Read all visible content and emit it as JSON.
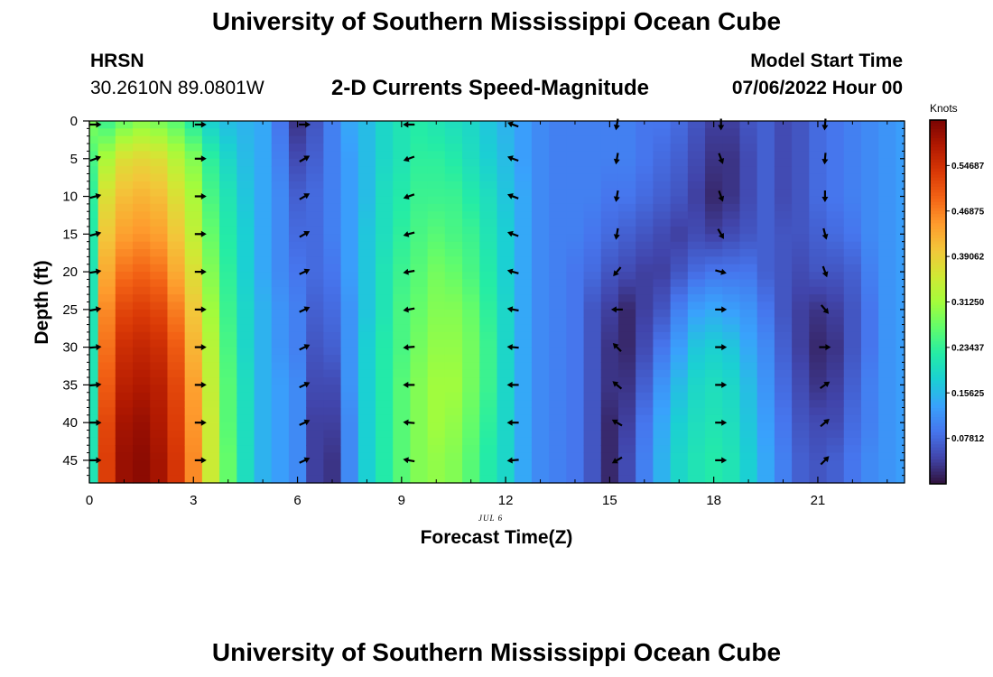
{
  "header": {
    "title": "University of Southern Mississippi Ocean Cube",
    "station": "HRSN",
    "coordinates": "30.2610N  89.0801W",
    "subtitle": "2-D Currents Speed-Magnitude",
    "model_start_label": "Model Start Time",
    "model_start_value": "07/06/2022 Hour 00"
  },
  "footer": {
    "title": "University of Southern Mississippi Ocean Cube"
  },
  "colors": {
    "colormap": [
      "#30123b",
      "#4145ab",
      "#4675ed",
      "#39a2fc",
      "#1bcfd4",
      "#24eca6",
      "#61fc6c",
      "#a4fc3b",
      "#d1e834",
      "#f3c63a",
      "#fe9b2d",
      "#f36315",
      "#d93806",
      "#b11901",
      "#7a0403"
    ],
    "arrow": "#000000",
    "frame": "#000000"
  },
  "chart_data": {
    "type": "heatmap",
    "title": "2-D Currents Speed-Magnitude",
    "xlabel": "Forecast Time(Z)",
    "ylabel": "Depth (ft)",
    "x_sublabel": "JUL 6",
    "xlim": [
      0,
      23.5
    ],
    "ylim": [
      48,
      0
    ],
    "x_ticks": [
      0,
      3,
      6,
      9,
      12,
      15,
      18,
      21
    ],
    "y_ticks": [
      0,
      5,
      10,
      15,
      20,
      25,
      30,
      35,
      40,
      45
    ],
    "colorbar": {
      "label": "Knots",
      "min": 0,
      "max": 0.625,
      "ticks": [
        0.54687,
        0.46875,
        0.39062,
        0.3125,
        0.23437,
        0.15625,
        0.07812
      ],
      "tick_labels": [
        "0.54687",
        "0.46875",
        "0.39062",
        "0.31250",
        "0.23437",
        "0.15625",
        "0.07812"
      ]
    },
    "hours": [
      0,
      0.5,
      1,
      1.5,
      2,
      2.5,
      3,
      3.5,
      4,
      4.5,
      5,
      5.5,
      6,
      6.5,
      7,
      7.5,
      8,
      8.5,
      9,
      9.5,
      10,
      10.5,
      11,
      11.5,
      12,
      12.5,
      13,
      13.5,
      14,
      14.5,
      15,
      15.5,
      16,
      16.5,
      17,
      17.5,
      18,
      18.5,
      19,
      19.5,
      20,
      20.5,
      21,
      21.5,
      22,
      22.5,
      23,
      23.5
    ],
    "depths": [
      0,
      5,
      10,
      15,
      20,
      25,
      30,
      35,
      40,
      45,
      48
    ],
    "speed_knots": [
      [
        0.29,
        0.25,
        0.23,
        0.22,
        0.21,
        0.21,
        0.21,
        0.21,
        0.21,
        0.21,
        0.21
      ],
      [
        0.24,
        0.32,
        0.37,
        0.4,
        0.43,
        0.46,
        0.48,
        0.5,
        0.52,
        0.53,
        0.53
      ],
      [
        0.27,
        0.37,
        0.41,
        0.44,
        0.48,
        0.52,
        0.55,
        0.57,
        0.59,
        0.6,
        0.6
      ],
      [
        0.29,
        0.38,
        0.42,
        0.45,
        0.49,
        0.53,
        0.56,
        0.58,
        0.6,
        0.61,
        0.61
      ],
      [
        0.28,
        0.37,
        0.41,
        0.44,
        0.48,
        0.52,
        0.55,
        0.57,
        0.58,
        0.59,
        0.59
      ],
      [
        0.26,
        0.33,
        0.37,
        0.4,
        0.43,
        0.47,
        0.5,
        0.52,
        0.53,
        0.54,
        0.54
      ],
      [
        0.22,
        0.29,
        0.32,
        0.34,
        0.37,
        0.4,
        0.42,
        0.44,
        0.45,
        0.46,
        0.46
      ],
      [
        0.18,
        0.23,
        0.25,
        0.27,
        0.29,
        0.31,
        0.33,
        0.34,
        0.35,
        0.35,
        0.35
      ],
      [
        0.16,
        0.19,
        0.21,
        0.22,
        0.23,
        0.24,
        0.25,
        0.26,
        0.26,
        0.27,
        0.27
      ],
      [
        0.15,
        0.16,
        0.17,
        0.18,
        0.18,
        0.19,
        0.19,
        0.2,
        0.2,
        0.2,
        0.2
      ],
      [
        0.14,
        0.14,
        0.14,
        0.14,
        0.14,
        0.15,
        0.15,
        0.15,
        0.15,
        0.15,
        0.15
      ],
      [
        0.09,
        0.1,
        0.11,
        0.11,
        0.11,
        0.12,
        0.12,
        0.13,
        0.13,
        0.13,
        0.13
      ],
      [
        0.03,
        0.05,
        0.07,
        0.08,
        0.09,
        0.1,
        0.1,
        0.11,
        0.11,
        0.11,
        0.11
      ],
      [
        0.06,
        0.07,
        0.08,
        0.08,
        0.08,
        0.07,
        0.06,
        0.05,
        0.04,
        0.04,
        0.04
      ],
      [
        0.1,
        0.1,
        0.1,
        0.1,
        0.09,
        0.08,
        0.07,
        0.05,
        0.04,
        0.03,
        0.03
      ],
      [
        0.14,
        0.13,
        0.13,
        0.13,
        0.13,
        0.12,
        0.12,
        0.12,
        0.11,
        0.11,
        0.11
      ],
      [
        0.16,
        0.16,
        0.16,
        0.17,
        0.17,
        0.17,
        0.18,
        0.18,
        0.18,
        0.18,
        0.18
      ],
      [
        0.19,
        0.19,
        0.2,
        0.2,
        0.21,
        0.21,
        0.22,
        0.22,
        0.22,
        0.22,
        0.22
      ],
      [
        0.21,
        0.21,
        0.22,
        0.23,
        0.24,
        0.25,
        0.25,
        0.26,
        0.26,
        0.26,
        0.26
      ],
      [
        0.22,
        0.23,
        0.24,
        0.25,
        0.26,
        0.27,
        0.28,
        0.29,
        0.29,
        0.29,
        0.29
      ],
      [
        0.21,
        0.23,
        0.24,
        0.26,
        0.28,
        0.29,
        0.3,
        0.31,
        0.31,
        0.3,
        0.3
      ],
      [
        0.2,
        0.22,
        0.24,
        0.25,
        0.27,
        0.29,
        0.3,
        0.31,
        0.3,
        0.29,
        0.29
      ],
      [
        0.19,
        0.2,
        0.22,
        0.24,
        0.25,
        0.27,
        0.28,
        0.28,
        0.27,
        0.26,
        0.26
      ],
      [
        0.17,
        0.18,
        0.2,
        0.21,
        0.22,
        0.23,
        0.24,
        0.24,
        0.23,
        0.22,
        0.22
      ],
      [
        0.15,
        0.16,
        0.17,
        0.18,
        0.18,
        0.19,
        0.19,
        0.19,
        0.19,
        0.19,
        0.19
      ],
      [
        0.13,
        0.13,
        0.14,
        0.14,
        0.14,
        0.14,
        0.14,
        0.14,
        0.14,
        0.14,
        0.14
      ],
      [
        0.11,
        0.11,
        0.11,
        0.11,
        0.11,
        0.11,
        0.11,
        0.11,
        0.11,
        0.11,
        0.11
      ],
      [
        0.1,
        0.1,
        0.1,
        0.1,
        0.1,
        0.1,
        0.1,
        0.1,
        0.1,
        0.1,
        0.1
      ],
      [
        0.1,
        0.1,
        0.1,
        0.1,
        0.09,
        0.09,
        0.09,
        0.09,
        0.09,
        0.09,
        0.09
      ],
      [
        0.1,
        0.1,
        0.1,
        0.09,
        0.08,
        0.06,
        0.06,
        0.06,
        0.06,
        0.06,
        0.06
      ],
      [
        0.1,
        0.1,
        0.09,
        0.08,
        0.06,
        0.04,
        0.03,
        0.03,
        0.02,
        0.02,
        0.02
      ],
      [
        0.1,
        0.1,
        0.09,
        0.07,
        0.05,
        0.02,
        0.02,
        0.03,
        0.04,
        0.05,
        0.05
      ],
      [
        0.09,
        0.09,
        0.08,
        0.06,
        0.04,
        0.04,
        0.05,
        0.07,
        0.09,
        0.1,
        0.1
      ],
      [
        0.09,
        0.08,
        0.07,
        0.05,
        0.04,
        0.06,
        0.09,
        0.12,
        0.14,
        0.15,
        0.15
      ],
      [
        0.08,
        0.07,
        0.06,
        0.04,
        0.06,
        0.1,
        0.13,
        0.16,
        0.18,
        0.19,
        0.19
      ],
      [
        0.06,
        0.05,
        0.04,
        0.05,
        0.08,
        0.13,
        0.17,
        0.19,
        0.2,
        0.21,
        0.21
      ],
      [
        0.04,
        0.03,
        0.02,
        0.04,
        0.09,
        0.14,
        0.18,
        0.2,
        0.21,
        0.22,
        0.22
      ],
      [
        0.04,
        0.03,
        0.03,
        0.05,
        0.09,
        0.13,
        0.17,
        0.19,
        0.2,
        0.21,
        0.21
      ],
      [
        0.06,
        0.05,
        0.05,
        0.06,
        0.09,
        0.12,
        0.14,
        0.16,
        0.17,
        0.18,
        0.18
      ],
      [
        0.07,
        0.07,
        0.07,
        0.07,
        0.07,
        0.09,
        0.11,
        0.12,
        0.13,
        0.14,
        0.14
      ],
      [
        0.05,
        0.05,
        0.05,
        0.06,
        0.06,
        0.06,
        0.07,
        0.08,
        0.09,
        0.1,
        0.1
      ],
      [
        0.06,
        0.06,
        0.06,
        0.06,
        0.05,
        0.04,
        0.04,
        0.05,
        0.06,
        0.07,
        0.07
      ],
      [
        0.08,
        0.08,
        0.08,
        0.07,
        0.06,
        0.03,
        0.02,
        0.03,
        0.05,
        0.06,
        0.06
      ],
      [
        0.09,
        0.09,
        0.09,
        0.08,
        0.06,
        0.04,
        0.03,
        0.04,
        0.05,
        0.07,
        0.07
      ],
      [
        0.1,
        0.1,
        0.1,
        0.09,
        0.07,
        0.06,
        0.06,
        0.07,
        0.08,
        0.09,
        0.09
      ],
      [
        0.11,
        0.11,
        0.11,
        0.11,
        0.1,
        0.09,
        0.09,
        0.1,
        0.1,
        0.11,
        0.11
      ],
      [
        0.12,
        0.12,
        0.12,
        0.12,
        0.12,
        0.12,
        0.12,
        0.12,
        0.12,
        0.12,
        0.12
      ],
      [
        0.13,
        0.13,
        0.13,
        0.13,
        0.13,
        0.13,
        0.13,
        0.13,
        0.13,
        0.13,
        0.13
      ]
    ],
    "vectors": {
      "hours": [
        0,
        3,
        6,
        9,
        12,
        15,
        18,
        21
      ],
      "depths": [
        5,
        10,
        15,
        20,
        25,
        30,
        35,
        40,
        45
      ],
      "direction_deg_math": [
        [
          20,
          15,
          15,
          10,
          10,
          5,
          5,
          0,
          0
        ],
        [
          0,
          0,
          0,
          0,
          0,
          0,
          0,
          0,
          0
        ],
        [
          30,
          30,
          30,
          25,
          25,
          25,
          25,
          25,
          25
        ],
        [
          200,
          200,
          195,
          190,
          190,
          185,
          180,
          175,
          170
        ],
        [
          160,
          160,
          160,
          165,
          170,
          175,
          180,
          180,
          185
        ],
        [
          260,
          260,
          260,
          230,
          180,
          135,
          140,
          150,
          210
        ],
        [
          290,
          290,
          300,
          345,
          0,
          0,
          0,
          0,
          0
        ],
        [
          265,
          270,
          285,
          290,
          310,
          0,
          35,
          40,
          45
        ]
      ],
      "surface_direction_deg_math": [
        0,
        0,
        0,
        180,
        160,
        260,
        270,
        265
      ]
    }
  }
}
